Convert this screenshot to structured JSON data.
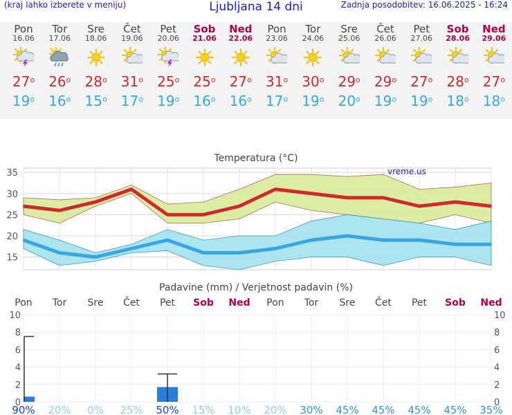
{
  "header": {
    "menu_hint": "(kraj lahko izberete v meniju)",
    "title": "Ljubljana 14 dni",
    "updated": "Zadnja posodobitev: 16.06.2025 - 16:24"
  },
  "days": [
    {
      "name": "Pon",
      "date": "16.06",
      "weekend": false,
      "icon": "sun-cloud-lightning-icon",
      "tmax": "27",
      "tmin": "19"
    },
    {
      "name": "Tor",
      "date": "17.06",
      "weekend": false,
      "icon": "sun-cloud-rain-icon",
      "tmax": "26",
      "tmin": "16"
    },
    {
      "name": "Sre",
      "date": "18.06",
      "weekend": false,
      "icon": "sun-icon",
      "tmax": "28",
      "tmin": "15"
    },
    {
      "name": "Čet",
      "date": "19.06",
      "weekend": false,
      "icon": "sun-cloud-icon",
      "tmax": "31",
      "tmin": "17"
    },
    {
      "name": "Pet",
      "date": "20.06",
      "weekend": false,
      "icon": "sun-cloud-lightning-icon",
      "tmax": "25",
      "tmin": "19"
    },
    {
      "name": "Sob",
      "date": "21.06",
      "weekend": true,
      "icon": "sun-icon",
      "tmax": "25",
      "tmin": "16"
    },
    {
      "name": "Ned",
      "date": "22.06",
      "weekend": true,
      "icon": "sun-icon",
      "tmax": "27",
      "tmin": "16"
    },
    {
      "name": "Pon",
      "date": "23.06",
      "weekend": false,
      "icon": "sun-cloud-icon",
      "tmax": "31",
      "tmin": "17"
    },
    {
      "name": "Tor",
      "date": "24.06",
      "weekend": false,
      "icon": "sun-icon",
      "tmax": "30",
      "tmin": "19"
    },
    {
      "name": "Sre",
      "date": "25.06",
      "weekend": false,
      "icon": "sun-cloud-icon",
      "tmax": "29",
      "tmin": "20"
    },
    {
      "name": "Čet",
      "date": "26.06",
      "weekend": false,
      "icon": "sun-cloud-icon",
      "tmax": "29",
      "tmin": "19"
    },
    {
      "name": "Pet",
      "date": "27.06",
      "weekend": false,
      "icon": "sun-cloud-icon",
      "tmax": "27",
      "tmin": "19"
    },
    {
      "name": "Sob",
      "date": "28.06",
      "weekend": true,
      "icon": "sun-cloud-icon",
      "tmax": "28",
      "tmin": "18"
    },
    {
      "name": "Ned",
      "date": "29.06",
      "weekend": true,
      "icon": "sun-cloud-icon",
      "tmax": "27",
      "tmin": "18"
    }
  ],
  "colors": {
    "tmax": "#d0282f",
    "tmin": "#37a7e0",
    "max_band": "#d9ec9a",
    "min_band": "#a4e2ee",
    "weekend": "#b0004d",
    "precip_bar": "#2b7de0"
  },
  "chart_data": [
    {
      "type": "area",
      "title": "Temperatura (°C)",
      "watermark": "vreme.us",
      "ylim": [
        12,
        36
      ],
      "yticks": [
        15,
        20,
        25,
        30,
        35
      ],
      "grid": true,
      "categories": [
        "Pon",
        "Tor",
        "Sre",
        "Čet",
        "Pet",
        "Sob",
        "Ned",
        "Pon",
        "Tor",
        "Sre",
        "Čet",
        "Pet",
        "Sob",
        "Ned"
      ],
      "series": [
        {
          "name": "max",
          "values": [
            27,
            26,
            28,
            31,
            25,
            25,
            27,
            31,
            30,
            29,
            29,
            27,
            28,
            27
          ],
          "band_low": [
            25,
            23,
            27,
            30,
            23,
            23,
            24,
            28,
            26,
            25,
            24,
            23,
            25,
            23
          ],
          "band_high": [
            29,
            28.5,
            29,
            32,
            27.5,
            28,
            31,
            34.5,
            34.5,
            34,
            34.5,
            31,
            31.5,
            32.5
          ]
        },
        {
          "name": "min",
          "values": [
            19,
            16,
            15,
            17,
            19,
            16,
            16,
            17,
            19,
            20,
            19,
            19,
            18,
            18
          ],
          "band_low": [
            17,
            13,
            14,
            16,
            16.5,
            13,
            12,
            14,
            15,
            15,
            13,
            15,
            15,
            13
          ],
          "band_high": [
            21.5,
            19,
            16,
            18,
            21.5,
            19,
            20,
            20,
            23.5,
            25,
            24,
            23,
            21.5,
            23.5
          ]
        }
      ]
    },
    {
      "type": "bar",
      "title": "Padavine (mm) / Verjetnost padavin (%)",
      "ylim": [
        0,
        10
      ],
      "yticks": [
        0,
        2,
        4,
        6,
        8,
        10
      ],
      "categories": [
        "Pon",
        "Tor",
        "Sre",
        "Čet",
        "Pet",
        "Sob",
        "Ned",
        "Pon",
        "Tor",
        "Sre",
        "Čet",
        "Pet",
        "Sob",
        "Ned"
      ],
      "values": [
        0.6,
        0,
        0,
        0,
        1.7,
        0,
        0,
        0,
        0,
        0,
        0,
        0,
        0,
        0
      ],
      "error_high": [
        7.5,
        0,
        0,
        0,
        3.2,
        0,
        0,
        0,
        0,
        0,
        0,
        0,
        0,
        0
      ],
      "probability": [
        "90%",
        "20%",
        "0%",
        "25%",
        "50%",
        "15%",
        "10%",
        "20%",
        "30%",
        "45%",
        "45%",
        "45%",
        "45%",
        "35%"
      ],
      "probability_values": [
        90,
        20,
        0,
        25,
        50,
        15,
        10,
        20,
        30,
        45,
        45,
        45,
        45,
        35
      ]
    }
  ]
}
